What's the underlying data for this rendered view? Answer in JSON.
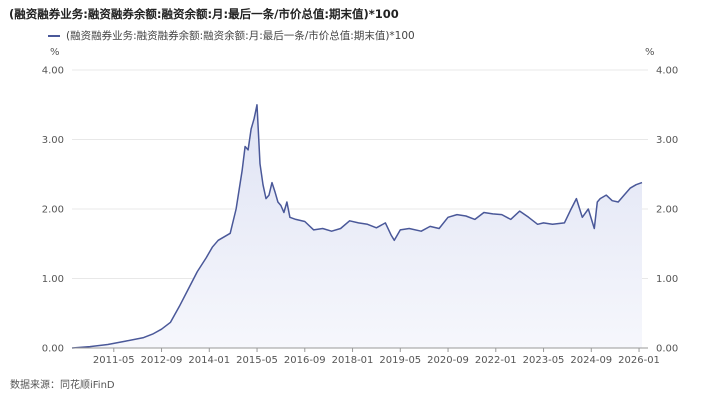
{
  "chart_data": {
    "type": "area",
    "title": "(融资融券业务:融资融券余额:融资余额:月:最后一条/市价总值:期末值)*100",
    "legend": [
      "(融资融券业务:融资融券余额:融资余额:月:最后一条/市价总值:期末值)*100"
    ],
    "legend_position": "top-left",
    "yunit_left": "%",
    "yunit_right": "%",
    "ylim": [
      0,
      4
    ],
    "yticks": [
      "0.00",
      "1.00",
      "2.00",
      "3.00",
      "4.00"
    ],
    "xlim": [
      "2010-03",
      "2026-04"
    ],
    "xticks": [
      "2011-05",
      "2012-09",
      "2014-01",
      "2015-05",
      "2016-09",
      "2018-01",
      "2019-05",
      "2020-09",
      "2022-01",
      "2023-05",
      "2024-09",
      "2026-01"
    ],
    "grid": true,
    "colors": {
      "line": "#4a5899",
      "fill": "#e9ecf8",
      "grid": "#e8e8e8"
    },
    "series": [
      {
        "name": "(融资融券业务:融资融券余额:融资余额:月:最后一条/市价总值:期末值)*100",
        "points": [
          [
            "2010-03",
            0.0
          ],
          [
            "2010-09",
            0.02
          ],
          [
            "2011-03",
            0.05
          ],
          [
            "2011-09",
            0.1
          ],
          [
            "2012-03",
            0.15
          ],
          [
            "2012-06",
            0.2
          ],
          [
            "2012-09",
            0.27
          ],
          [
            "2012-12",
            0.37
          ],
          [
            "2013-03",
            0.6
          ],
          [
            "2013-06",
            0.85
          ],
          [
            "2013-09",
            1.1
          ],
          [
            "2013-12",
            1.3
          ],
          [
            "2014-02",
            1.45
          ],
          [
            "2014-04",
            1.55
          ],
          [
            "2014-06",
            1.6
          ],
          [
            "2014-08",
            1.65
          ],
          [
            "2014-10",
            2.0
          ],
          [
            "2014-12",
            2.55
          ],
          [
            "2015-01",
            2.9
          ],
          [
            "2015-02",
            2.85
          ],
          [
            "2015-03",
            3.15
          ],
          [
            "2015-04",
            3.3
          ],
          [
            "2015-05",
            3.5
          ],
          [
            "2015-06",
            2.65
          ],
          [
            "2015-07",
            2.35
          ],
          [
            "2015-08",
            2.15
          ],
          [
            "2015-09",
            2.2
          ],
          [
            "2015-10",
            2.38
          ],
          [
            "2015-11",
            2.25
          ],
          [
            "2015-12",
            2.1
          ],
          [
            "2016-01",
            2.05
          ],
          [
            "2016-02",
            1.95
          ],
          [
            "2016-03",
            2.1
          ],
          [
            "2016-04",
            1.88
          ],
          [
            "2016-06",
            1.85
          ],
          [
            "2016-09",
            1.82
          ],
          [
            "2016-12",
            1.7
          ],
          [
            "2017-03",
            1.72
          ],
          [
            "2017-06",
            1.68
          ],
          [
            "2017-09",
            1.72
          ],
          [
            "2017-12",
            1.83
          ],
          [
            "2018-03",
            1.8
          ],
          [
            "2018-06",
            1.78
          ],
          [
            "2018-09",
            1.73
          ],
          [
            "2018-12",
            1.8
          ],
          [
            "2019-02",
            1.62
          ],
          [
            "2019-03",
            1.55
          ],
          [
            "2019-05",
            1.7
          ],
          [
            "2019-08",
            1.72
          ],
          [
            "2019-12",
            1.68
          ],
          [
            "2020-03",
            1.75
          ],
          [
            "2020-06",
            1.72
          ],
          [
            "2020-09",
            1.88
          ],
          [
            "2020-12",
            1.92
          ],
          [
            "2021-03",
            1.9
          ],
          [
            "2021-06",
            1.85
          ],
          [
            "2021-09",
            1.95
          ],
          [
            "2021-12",
            1.93
          ],
          [
            "2022-03",
            1.92
          ],
          [
            "2022-06",
            1.85
          ],
          [
            "2022-09",
            1.97
          ],
          [
            "2022-12",
            1.88
          ],
          [
            "2023-03",
            1.78
          ],
          [
            "2023-05",
            1.8
          ],
          [
            "2023-08",
            1.78
          ],
          [
            "2023-12",
            1.8
          ],
          [
            "2024-02",
            1.98
          ],
          [
            "2024-04",
            2.15
          ],
          [
            "2024-06",
            1.88
          ],
          [
            "2024-08",
            2.0
          ],
          [
            "2024-10",
            1.72
          ],
          [
            "2024-11",
            2.1
          ],
          [
            "2024-12",
            2.15
          ],
          [
            "2025-02",
            2.2
          ],
          [
            "2025-04",
            2.12
          ],
          [
            "2025-06",
            2.1
          ],
          [
            "2025-08",
            2.2
          ],
          [
            "2025-10",
            2.3
          ],
          [
            "2025-12",
            2.35
          ],
          [
            "2026-02",
            2.38
          ]
        ]
      }
    ]
  },
  "source": "数据来源：同花顺iFinD"
}
